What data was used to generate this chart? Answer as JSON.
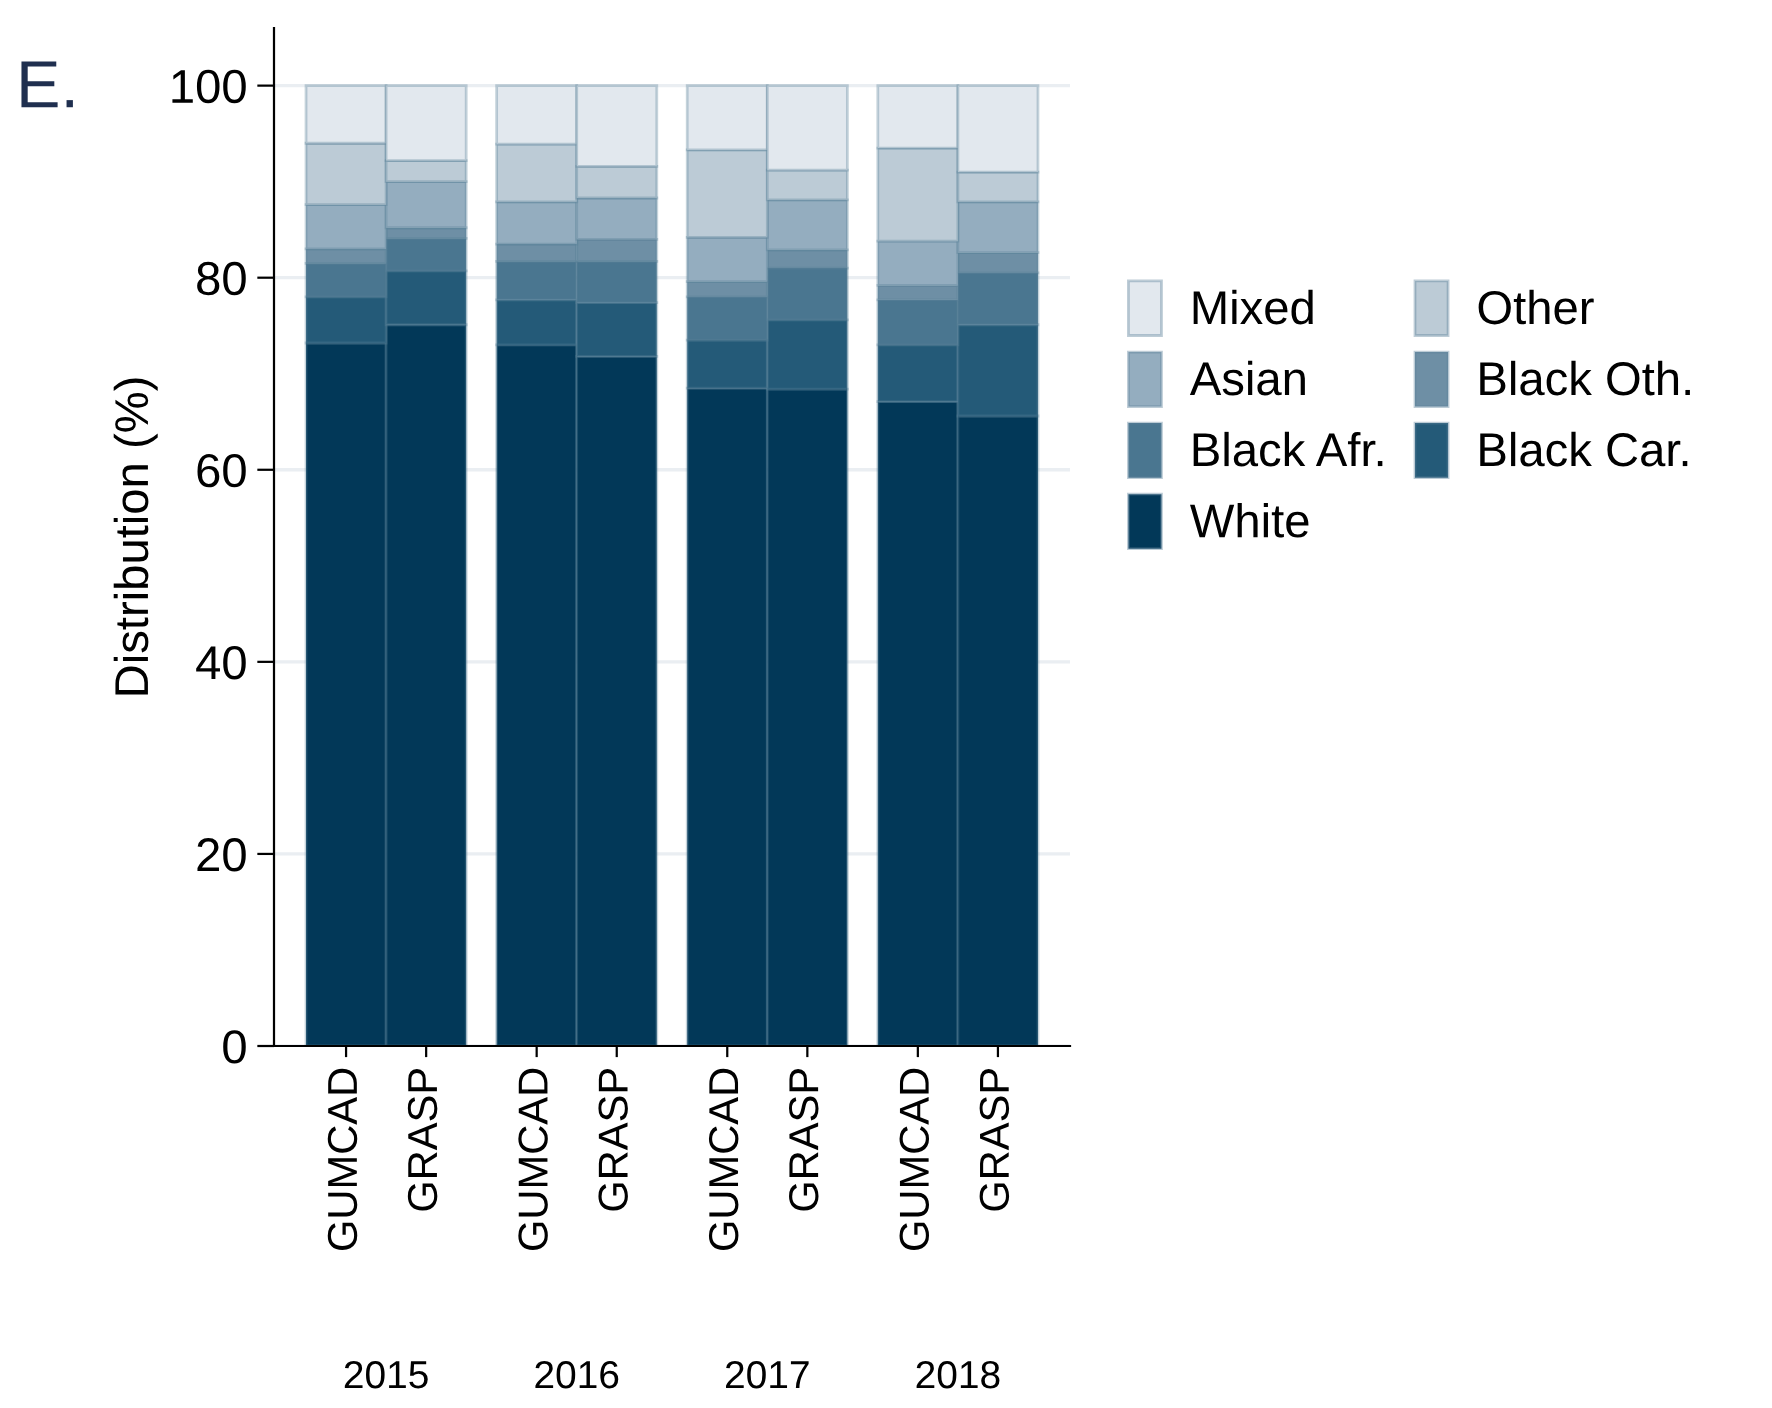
{
  "chart_data": {
    "type": "bar",
    "stacked": true,
    "title": "E.",
    "ylabel": "Distribution (%)",
    "categories": [
      "GUMCAD",
      "GRASP",
      "GUMCAD",
      "GRASP",
      "GUMCAD",
      "GRASP",
      "GUMCAD",
      "GRASP"
    ],
    "annotations": [
      "2015",
      "2016",
      "2017",
      "2018"
    ],
    "series": [
      {
        "name": "White",
        "color": "#023858",
        "values": [
          73.2,
          75.1,
          73.0,
          71.8,
          68.5,
          68.4,
          67.1,
          65.6
        ]
      },
      {
        "name": "Black Car.",
        "color": "#245a78",
        "values": [
          4.8,
          5.6,
          4.7,
          5.6,
          5.0,
          7.2,
          5.9,
          9.5
        ]
      },
      {
        "name": "Black Afr.",
        "color": "#4a7690",
        "values": [
          3.5,
          3.4,
          4.0,
          4.3,
          4.5,
          5.4,
          4.7,
          5.4
        ]
      },
      {
        "name": "Black Oth.",
        "color": "#6e8fa5",
        "values": [
          1.5,
          1.1,
          1.8,
          2.3,
          1.6,
          1.9,
          1.5,
          2.1
        ]
      },
      {
        "name": "Asian",
        "color": "#94adbf",
        "values": [
          4.6,
          4.8,
          4.4,
          4.3,
          4.6,
          5.2,
          4.6,
          5.3
        ]
      },
      {
        "name": "Other",
        "color": "#bccbd6",
        "values": [
          6.4,
          2.2,
          6.0,
          3.3,
          9.1,
          3.1,
          9.7,
          3.1
        ]
      },
      {
        "name": "Mixed",
        "color": "#e2e8ee",
        "values": [
          6.0,
          7.8,
          6.1,
          8.4,
          6.7,
          8.8,
          6.5,
          9.0
        ]
      }
    ],
    "ylim": [
      0,
      106
    ],
    "yticks": [
      0,
      20,
      40,
      60,
      80,
      100
    ],
    "grid": "y",
    "legend": "right"
  }
}
